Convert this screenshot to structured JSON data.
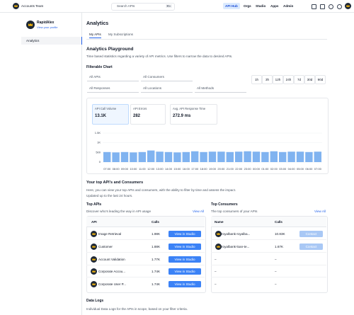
{
  "topbar": {
    "team": "Accounts Team",
    "search": "Search APIs",
    "shortcut": "⌘K",
    "nav": [
      "API Hub",
      "Orgs",
      "Studio",
      "Apps",
      "Admin"
    ]
  },
  "sidebar": {
    "user": "RapidAlex",
    "profile_link": "View your profile",
    "menu": [
      "Analytics"
    ]
  },
  "page": {
    "title": "Analytics",
    "tabs": [
      "My APIs",
      "My Subscriptions"
    ]
  },
  "playground": {
    "title": "Analytics Playground",
    "description": "Time based statistics regarding a variety of API metrics. Use filters to narrow the data to desired APIs.",
    "chart_title": "Filterable Chart",
    "filters": [
      "All APIs",
      "All Consumers",
      "All Responses",
      "All Locations",
      "All Methods"
    ],
    "ranges": [
      "1h",
      "3h",
      "12h",
      "24h",
      "7d",
      "30d",
      "90d"
    ]
  },
  "stats": [
    {
      "label": "API Call Volume",
      "value": "13.1K"
    },
    {
      "label": "API Errors",
      "value": "282"
    },
    {
      "label": "Avg. API Response Time",
      "value": "272.9 ms"
    }
  ],
  "chart_data": {
    "type": "bar",
    "categories": [
      "07:00",
      "08:00",
      "09:00",
      "10:00",
      "11:00",
      "12:00",
      "13:00",
      "14:00",
      "15:00",
      "16:00",
      "17:00",
      "18:00",
      "19:00",
      "20:00",
      "21:00",
      "22:00",
      "23:00",
      "00:00",
      "01:00",
      "02:00",
      "03:00",
      "04:00",
      "05:00",
      "06:00",
      "07:00"
    ],
    "values": [
      520,
      500,
      520,
      500,
      520,
      600,
      540,
      520,
      500,
      520,
      560,
      520,
      540,
      540,
      520,
      540,
      560,
      540,
      520,
      560,
      520,
      540,
      540,
      520,
      540
    ],
    "color": "#80b3f0",
    "ylim": [
      0,
      1500
    ],
    "yticks": [
      0,
      500,
      {
        "value": 1000,
        "label": "1K"
      },
      {
        "value": 1500,
        "label": "1.5K"
      }
    ],
    "grid": true
  },
  "top_section": {
    "title": "Your top API's and Consumers",
    "description": "Here, you can view your top APIs and consumers, with the ability to filter by time and assess the impact.",
    "updated": "Updated up to the last 24 hours."
  },
  "top_apis": {
    "title": "Top APIs",
    "subtitle": "Discover who's leading the way in API usage",
    "view_all": "View All",
    "columns": [
      "API",
      "Calls"
    ],
    "rows": [
      [
        "Image Retrieval",
        "1.98K",
        "View in Studio"
      ],
      [
        "Customer",
        "1.88K",
        "View in Studio"
      ],
      [
        "Account Validation",
        "1.77K",
        "View in Studio"
      ],
      [
        "Corporate Accou...",
        "1.74K",
        "View in Studio"
      ],
      [
        "Corporate User P...",
        "1.74K",
        "View in Studio"
      ]
    ]
  },
  "top_consumers": {
    "title": "Top Consumers",
    "subtitle": "The top consumers of your APIs",
    "view_all": "View All",
    "columns": [
      "Name",
      "Calls"
    ],
    "rows": [
      [
        "royalbank-royalba...",
        "10.83K",
        "Contact"
      ],
      [
        "royalbank-loan-te...",
        "1.67K",
        "Contact"
      ],
      [
        "–",
        "–"
      ],
      [
        "–",
        "–"
      ],
      [
        "–",
        "–"
      ]
    ]
  },
  "data_logs": {
    "title": "Data Logs",
    "description": "Individual Data Logs for the APIs in scope, based on your filter criteria."
  }
}
